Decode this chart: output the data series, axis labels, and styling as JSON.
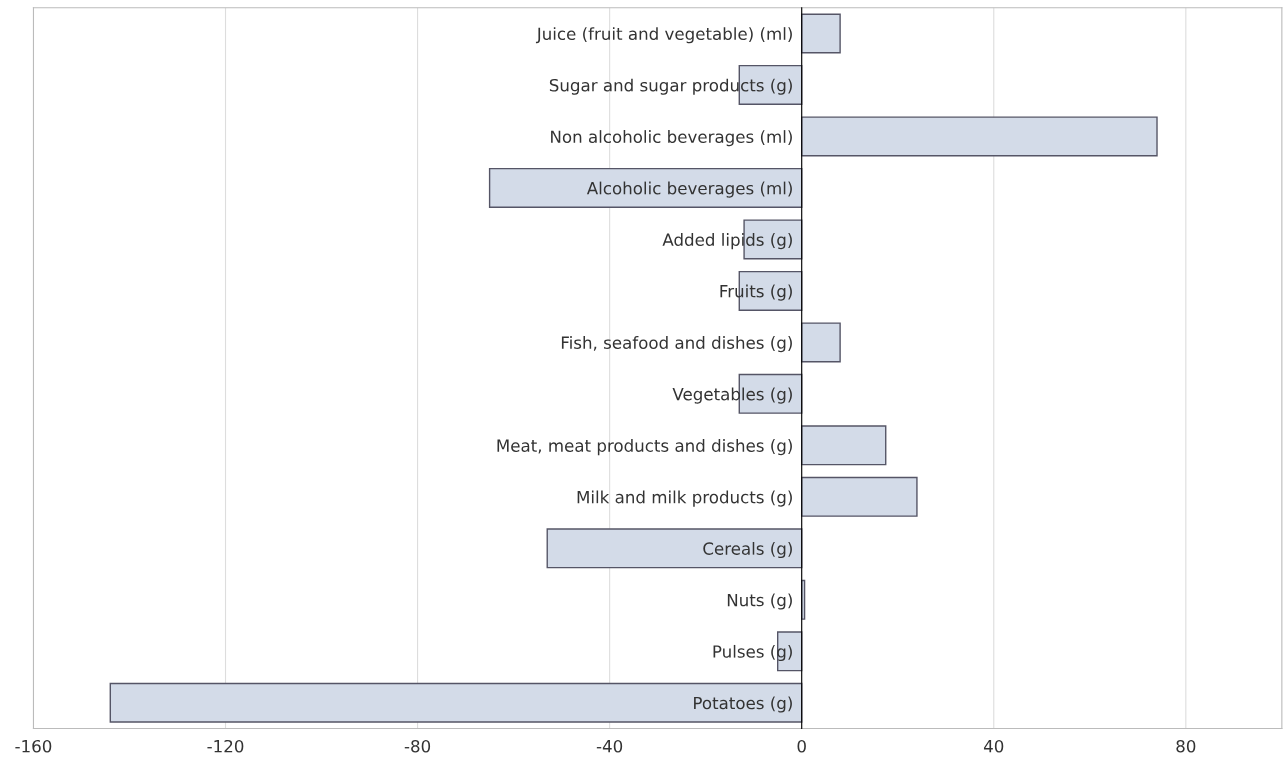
{
  "chart_data": {
    "type": "bar",
    "orientation": "horizontal",
    "categories": [
      "Juice (fruit and vegetable) (ml)",
      "Sugar and sugar products (g)",
      "Non alcoholic beverages (ml)",
      "Alcoholic beverages (ml)",
      "Added lipids (g)",
      "Fruits (g)",
      "Fish, seafood and dishes (g)",
      "Vegetables (g)",
      "Meat, meat products and dishes (g)",
      "Milk and milk products (g)",
      "Cereals (g)",
      "Nuts (g)",
      "Pulses (g)",
      "Potatoes (g)"
    ],
    "values": [
      8,
      -13,
      74,
      -65,
      -12,
      -13,
      8,
      -13,
      17.5,
      24,
      -53,
      0.6,
      -5,
      -144
    ],
    "color": "#d3dbe8",
    "xlim": [
      -160,
      100
    ],
    "xticks": [
      -160,
      -120,
      -80,
      -40,
      0,
      40,
      80
    ],
    "grid": "x"
  }
}
